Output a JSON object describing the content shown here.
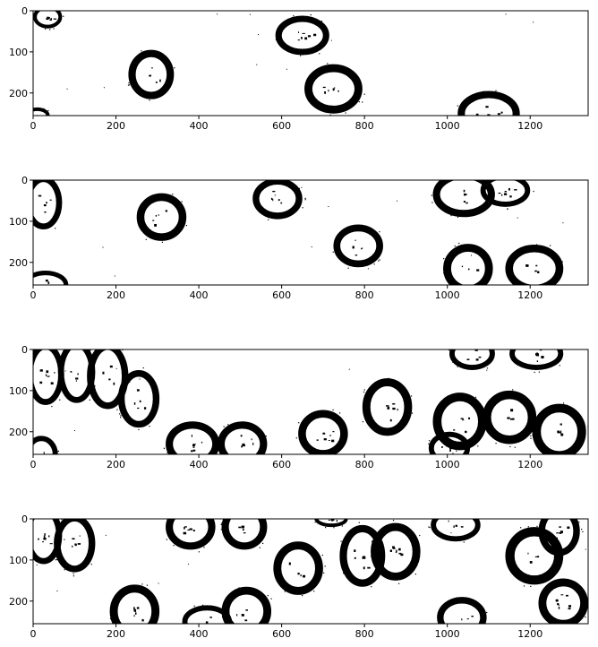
{
  "figure": {
    "description_free": true
  },
  "colors": {
    "foreground": "#000000",
    "background": "#ffffff"
  },
  "chart_data": [
    {
      "type": "heatmap",
      "title": "",
      "xlabel": "",
      "ylabel": "",
      "xlim": [
        0,
        1340
      ],
      "ylim": [
        255,
        0
      ],
      "xticks": [
        0,
        200,
        400,
        600,
        800,
        1000,
        1200
      ],
      "yticks": [
        0,
        100,
        200
      ],
      "xtick_labels": [
        "0",
        "200",
        "400",
        "600",
        "800",
        "1000",
        "1200"
      ],
      "ytick_labels": [
        "0",
        "100",
        "200"
      ],
      "cells": [
        {
          "cx": 35,
          "cy": 15,
          "rx": 35,
          "ry": 28
        },
        {
          "cx": 285,
          "cy": 155,
          "rx": 55,
          "ry": 60
        },
        {
          "cx": 650,
          "cy": 60,
          "rx": 65,
          "ry": 48
        },
        {
          "cx": 725,
          "cy": 190,
          "rx": 70,
          "ry": 60
        },
        {
          "cx": 1100,
          "cy": 250,
          "rx": 75,
          "ry": 55
        },
        {
          "cx": 10,
          "cy": 255,
          "rx": 30,
          "ry": 20
        }
      ]
    },
    {
      "type": "heatmap",
      "title": "",
      "xlabel": "",
      "ylabel": "",
      "xlim": [
        0,
        1340
      ],
      "ylim": [
        255,
        0
      ],
      "xticks": [
        0,
        200,
        400,
        600,
        800,
        1000,
        1200
      ],
      "yticks": [
        0,
        100,
        200
      ],
      "xtick_labels": [
        "0",
        "200",
        "400",
        "600",
        "800",
        "1000",
        "1200"
      ],
      "ytick_labels": [
        "0",
        "100",
        "200"
      ],
      "cells": [
        {
          "cx": 25,
          "cy": 55,
          "rx": 45,
          "ry": 65
        },
        {
          "cx": 310,
          "cy": 90,
          "rx": 60,
          "ry": 58
        },
        {
          "cx": 590,
          "cy": 45,
          "rx": 60,
          "ry": 50
        },
        {
          "cx": 785,
          "cy": 160,
          "rx": 60,
          "ry": 52
        },
        {
          "cx": 1040,
          "cy": 35,
          "rx": 75,
          "ry": 55
        },
        {
          "cx": 1140,
          "cy": 25,
          "rx": 60,
          "ry": 40
        },
        {
          "cx": 1050,
          "cy": 215,
          "rx": 60,
          "ry": 60
        },
        {
          "cx": 1210,
          "cy": 215,
          "rx": 70,
          "ry": 58
        },
        {
          "cx": 30,
          "cy": 255,
          "rx": 55,
          "ry": 35
        }
      ]
    },
    {
      "type": "heatmap",
      "title": "",
      "xlabel": "",
      "ylabel": "",
      "xlim": [
        0,
        1340
      ],
      "ylim": [
        255,
        0
      ],
      "xticks": [
        0,
        200,
        400,
        600,
        800,
        1000,
        1200
      ],
      "yticks": [
        0,
        100,
        200
      ],
      "xtick_labels": [
        "0",
        "200",
        "400",
        "600",
        "800",
        "1000",
        "1200"
      ],
      "ytick_labels": [
        "0",
        "100",
        "200"
      ],
      "cells": [
        {
          "cx": 30,
          "cy": 60,
          "rx": 45,
          "ry": 75
        },
        {
          "cx": 105,
          "cy": 55,
          "rx": 45,
          "ry": 75
        },
        {
          "cx": 180,
          "cy": 65,
          "rx": 50,
          "ry": 80
        },
        {
          "cx": 255,
          "cy": 120,
          "rx": 50,
          "ry": 70
        },
        {
          "cx": 385,
          "cy": 230,
          "rx": 65,
          "ry": 55
        },
        {
          "cx": 505,
          "cy": 230,
          "rx": 60,
          "ry": 55
        },
        {
          "cx": 700,
          "cy": 205,
          "rx": 60,
          "ry": 58
        },
        {
          "cx": 855,
          "cy": 140,
          "rx": 60,
          "ry": 70
        },
        {
          "cx": 1060,
          "cy": 10,
          "rx": 55,
          "ry": 40
        },
        {
          "cx": 1215,
          "cy": 10,
          "rx": 65,
          "ry": 40
        },
        {
          "cx": 1030,
          "cy": 175,
          "rx": 65,
          "ry": 70
        },
        {
          "cx": 1150,
          "cy": 165,
          "rx": 65,
          "ry": 65
        },
        {
          "cx": 1270,
          "cy": 200,
          "rx": 65,
          "ry": 68
        },
        {
          "cx": 1005,
          "cy": 240,
          "rx": 50,
          "ry": 40
        },
        {
          "cx": 20,
          "cy": 255,
          "rx": 40,
          "ry": 45
        }
      ]
    },
    {
      "type": "heatmap",
      "title": "",
      "xlabel": "",
      "ylabel": "",
      "xlim": [
        0,
        1340
      ],
      "ylim": [
        255,
        0
      ],
      "xticks": [
        0,
        200,
        400,
        600,
        800,
        1000,
        1200
      ],
      "yticks": [
        0,
        100,
        200
      ],
      "xtick_labels": [
        "0",
        "200",
        "400",
        "600",
        "800",
        "1000",
        "1200"
      ],
      "ytick_labels": [
        "0",
        "100",
        "200"
      ],
      "cells": [
        {
          "cx": 25,
          "cy": 40,
          "rx": 45,
          "ry": 70
        },
        {
          "cx": 100,
          "cy": 60,
          "rx": 50,
          "ry": 70
        },
        {
          "cx": 380,
          "cy": 20,
          "rx": 60,
          "ry": 55
        },
        {
          "cx": 510,
          "cy": 20,
          "rx": 55,
          "ry": 55
        },
        {
          "cx": 640,
          "cy": 120,
          "rx": 60,
          "ry": 65
        },
        {
          "cx": 720,
          "cy": 0,
          "rx": 40,
          "ry": 20
        },
        {
          "cx": 795,
          "cy": 90,
          "rx": 55,
          "ry": 75
        },
        {
          "cx": 875,
          "cy": 80,
          "rx": 60,
          "ry": 70
        },
        {
          "cx": 1020,
          "cy": 15,
          "rx": 60,
          "ry": 40
        },
        {
          "cx": 1210,
          "cy": 90,
          "rx": 70,
          "ry": 70
        },
        {
          "cx": 1270,
          "cy": 30,
          "rx": 50,
          "ry": 60
        },
        {
          "cx": 245,
          "cy": 225,
          "rx": 60,
          "ry": 65
        },
        {
          "cx": 515,
          "cy": 225,
          "rx": 60,
          "ry": 60
        },
        {
          "cx": 420,
          "cy": 250,
          "rx": 60,
          "ry": 40
        },
        {
          "cx": 1035,
          "cy": 240,
          "rx": 60,
          "ry": 50
        },
        {
          "cx": 1280,
          "cy": 205,
          "rx": 60,
          "ry": 60
        }
      ]
    }
  ]
}
